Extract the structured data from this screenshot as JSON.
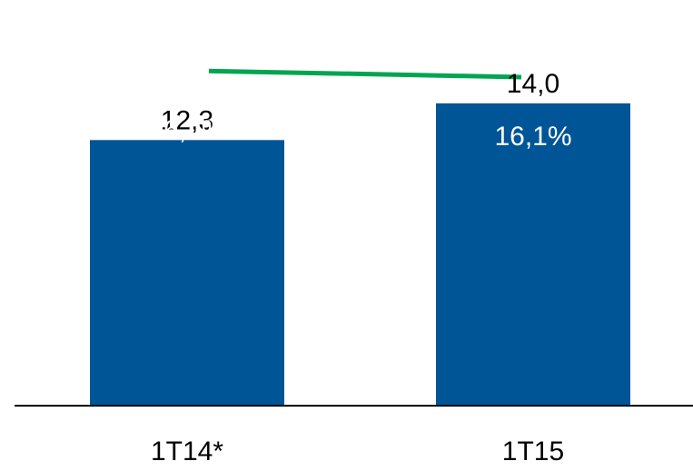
{
  "chart_data": {
    "type": "bar",
    "categories": [
      "1T14*",
      "1T15"
    ],
    "series": [
      {
        "type": "bar",
        "values": [
          12.3,
          14.0
        ],
        "value_labels": [
          "12,3",
          "14,0"
        ],
        "color": "#005596"
      },
      {
        "type": "line",
        "values": [
          16.4,
          16.1
        ],
        "value_labels": [
          "16,4%",
          "16,1%"
        ],
        "color": "#00A550"
      }
    ],
    "ylim": [
      0,
      16.6
    ],
    "line_ylim": [
      0,
      18.5
    ],
    "grid": false,
    "legend": "none",
    "title": "",
    "xlabel": "",
    "ylabel": ""
  }
}
